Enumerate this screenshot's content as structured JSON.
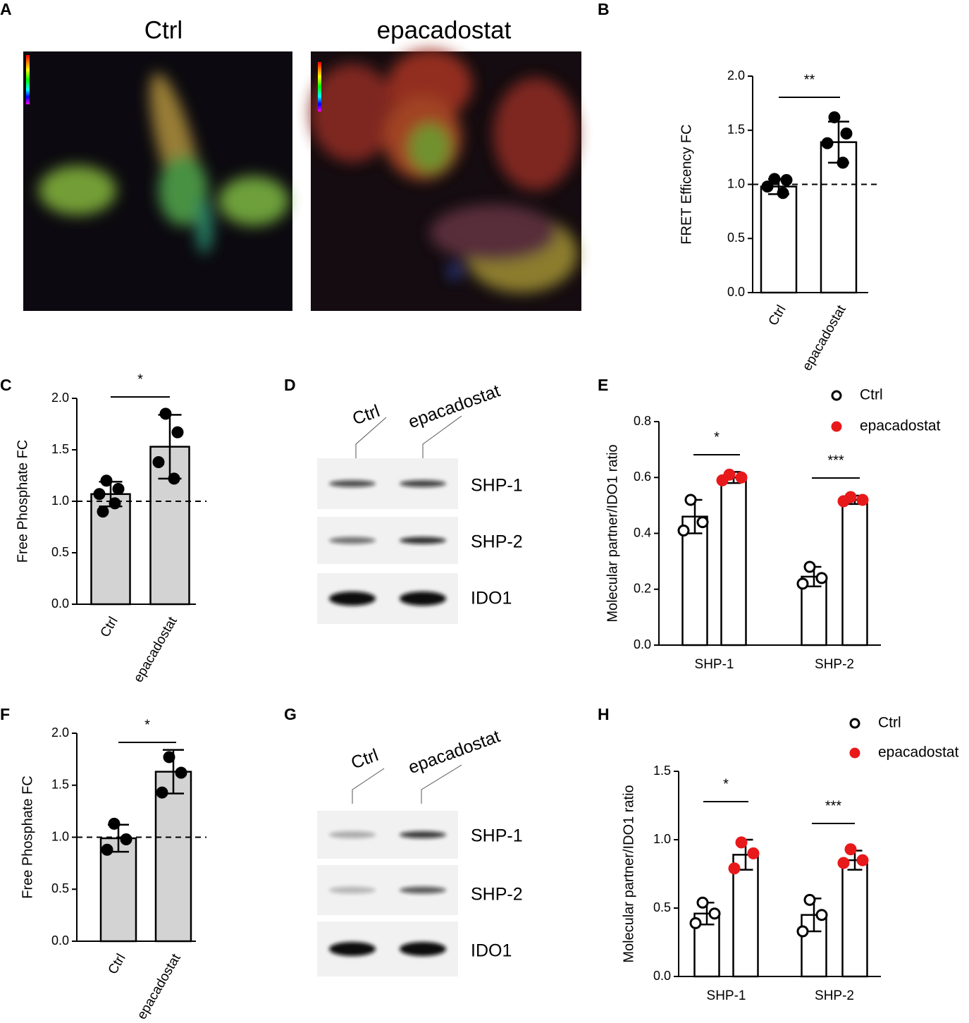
{
  "images": {
    "panel": "A",
    "titles": [
      "Ctrl",
      "epacadostat"
    ]
  },
  "blots": [
    {
      "panel": "D",
      "lanes": [
        "Ctrl",
        "epacadostat"
      ],
      "bands": [
        "SHP-1",
        "SHP-2",
        "IDO1"
      ]
    },
    {
      "panel": "G",
      "lanes": [
        "Ctrl",
        "epacadostat"
      ],
      "bands": [
        "SHP-1",
        "SHP-2",
        "IDO1"
      ]
    }
  ],
  "chart_data": [
    {
      "type": "bar",
      "panel": "B",
      "ylabel": "FRET Efficency FC",
      "categories": [
        "Ctrl",
        "epacadostat"
      ],
      "values": [
        0.98,
        1.39
      ],
      "errors": [
        0.07,
        0.19
      ],
      "points": [
        [
          1.05,
          1.04,
          0.98,
          0.92
        ],
        [
          1.62,
          1.47,
          1.38,
          1.2
        ]
      ],
      "bar_color": "#ffffff",
      "point_color": "#000000",
      "ylim": [
        0,
        2
      ],
      "yticks": [
        {
          "value": 0,
          "label": "0.0"
        },
        {
          "value": 0.5,
          "label": "0.5"
        },
        {
          "value": 1,
          "label": "1.0"
        },
        {
          "value": 1.5,
          "label": "1.5"
        },
        {
          "value": 2,
          "label": "2.0"
        }
      ],
      "refline": 1,
      "significance": [
        "**"
      ]
    },
    {
      "type": "bar",
      "panel": "C",
      "ylabel": "Free Phosphate FC",
      "categories": [
        "Ctrl",
        "epacadostat"
      ],
      "values": [
        1.07,
        1.53
      ],
      "errors": [
        0.12,
        0.31
      ],
      "points": [
        [
          1.2,
          1.12,
          1.07,
          0.98,
          0.9
        ],
        [
          1.85,
          1.67,
          1.38,
          1.22
        ]
      ],
      "bar_color": "#d3d3d3",
      "point_color": "#000000",
      "ylim": [
        0,
        2
      ],
      "yticks": [
        {
          "value": 0,
          "label": "0.0"
        },
        {
          "value": 0.5,
          "label": "0.5"
        },
        {
          "value": 1,
          "label": "1.0"
        },
        {
          "value": 1.5,
          "label": "1.5"
        },
        {
          "value": 2,
          "label": "2.0"
        }
      ],
      "refline": 1,
      "significance": [
        "*"
      ]
    },
    {
      "type": "grouped_bar",
      "panel": "E",
      "ylabel": "Molecular partner/IDO1 ratio",
      "categories": [
        "SHP-1",
        "SHP-2"
      ],
      "series": [
        {
          "name": "Ctrl",
          "color": "#000000",
          "filled": false,
          "values": [
            0.46,
            0.245
          ],
          "errors": [
            0.06,
            0.035
          ],
          "points": [
            [
              0.52,
              0.44,
              0.41
            ],
            [
              0.28,
              0.24,
              0.22
            ]
          ]
        },
        {
          "name": "epacadostat",
          "color": "#e8191b",
          "filled": true,
          "values": [
            0.6,
            0.52
          ],
          "errors": [
            0.02,
            0.015
          ],
          "points": [
            [
              0.61,
              0.6,
              0.59
            ],
            [
              0.53,
              0.52,
              0.515
            ]
          ]
        }
      ],
      "ylim": [
        0,
        0.8
      ],
      "yticks": [
        {
          "value": 0,
          "label": "0.0"
        },
        0.2,
        0.4,
        0.6,
        0.8
      ],
      "significance": [
        "*",
        "***"
      ]
    },
    {
      "type": "bar",
      "panel": "F",
      "ylabel": "Free Phosphate FC",
      "categories": [
        "Ctrl",
        "epacadostat"
      ],
      "values": [
        0.99,
        1.63
      ],
      "errors": [
        0.13,
        0.21
      ],
      "points": [
        [
          1.13,
          0.98,
          0.88
        ],
        [
          1.77,
          1.62,
          1.43
        ]
      ],
      "bar_color": "#d3d3d3",
      "point_color": "#000000",
      "ylim": [
        0,
        2
      ],
      "yticks": [
        {
          "value": 0,
          "label": "0.0"
        },
        {
          "value": 0.5,
          "label": "0.5"
        },
        {
          "value": 1,
          "label": "1.0"
        },
        {
          "value": 1.5,
          "label": "1.5"
        },
        {
          "value": 2,
          "label": "2.0"
        }
      ],
      "refline": 1,
      "significance": [
        "*"
      ]
    },
    {
      "type": "grouped_bar",
      "panel": "H",
      "ylabel": "Molecular partner/IDO1 ratio",
      "categories": [
        "SHP-1",
        "SHP-2"
      ],
      "series": [
        {
          "name": "Ctrl",
          "color": "#000000",
          "filled": false,
          "values": [
            0.46,
            0.45
          ],
          "errors": [
            0.08,
            0.12
          ],
          "points": [
            [
              0.54,
              0.46,
              0.39
            ],
            [
              0.56,
              0.45,
              0.33
            ]
          ]
        },
        {
          "name": "epacadostat",
          "color": "#e8191b",
          "filled": true,
          "values": [
            0.89,
            0.85
          ],
          "errors": [
            0.11,
            0.07
          ],
          "points": [
            [
              0.98,
              0.9,
              0.79
            ],
            [
              0.93,
              0.85,
              0.83
            ]
          ]
        }
      ],
      "ylim": [
        0,
        1.5
      ],
      "yticks": [
        {
          "value": 0,
          "label": "0.0"
        },
        {
          "value": 0.5,
          "label": "0.5"
        },
        {
          "value": 1,
          "label": "1.0"
        },
        {
          "value": 1.5,
          "label": "1.5"
        }
      ],
      "significance": [
        "*",
        "***"
      ]
    }
  ]
}
